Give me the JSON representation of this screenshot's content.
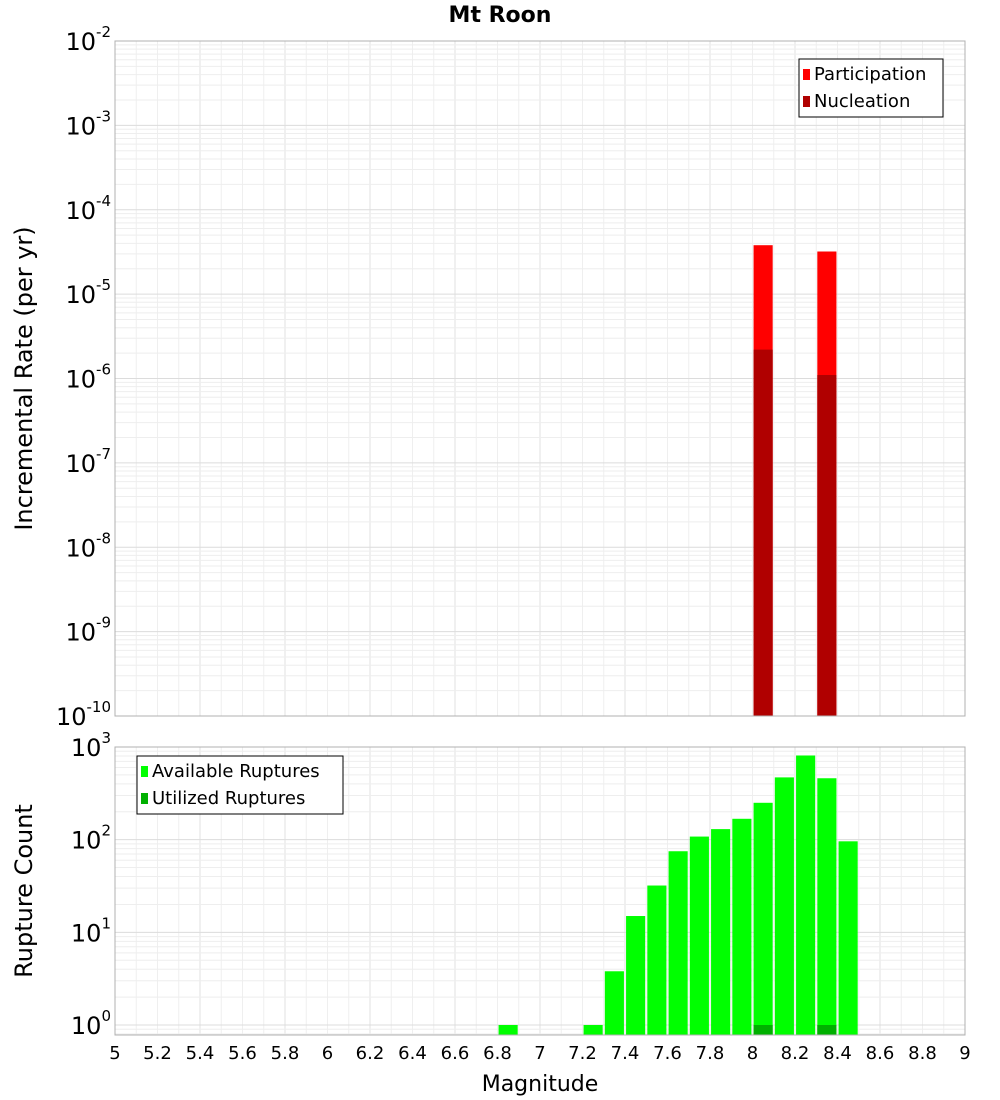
{
  "chart_data": [
    {
      "type": "bar",
      "title": "Mt Roon",
      "xlabel": "",
      "ylabel": "Incremental Rate (per yr)",
      "yscale": "log",
      "ylim": [
        1e-10,
        0.01
      ],
      "y_ticks": [
        {
          "base": "10",
          "exp": "-10"
        },
        {
          "base": "10",
          "exp": "-9"
        },
        {
          "base": "10",
          "exp": "-8"
        },
        {
          "base": "10",
          "exp": "-7"
        },
        {
          "base": "10",
          "exp": "-6"
        },
        {
          "base": "10",
          "exp": "-5"
        },
        {
          "base": "10",
          "exp": "-4"
        },
        {
          "base": "10",
          "exp": "-3"
        },
        {
          "base": "10",
          "exp": "-2"
        }
      ],
      "xlim": [
        5,
        9
      ],
      "bar_width": 0.09,
      "legend_position": "top-right",
      "series": [
        {
          "name": "Participation",
          "color": "#ff0000",
          "points": [
            {
              "x": 8.05,
              "y": 3.8e-05
            },
            {
              "x": 8.35,
              "y": 3.2e-05
            }
          ]
        },
        {
          "name": "Nucleation",
          "color": "#b00000",
          "points": [
            {
              "x": 8.05,
              "y": 2.2e-06
            },
            {
              "x": 8.35,
              "y": 1.1e-06
            }
          ]
        }
      ]
    },
    {
      "type": "bar",
      "xlabel": "Magnitude",
      "ylabel": "Rupture Count",
      "yscale": "log",
      "ylim": [
        0.78,
        1000
      ],
      "y_ticks": [
        {
          "value": 1,
          "base": "10",
          "exp": "0"
        },
        {
          "value": 10,
          "base": "10",
          "exp": "1"
        },
        {
          "value": 100,
          "base": "10",
          "exp": "2"
        },
        {
          "value": 1000,
          "base": "10",
          "exp": "3"
        }
      ],
      "xlim": [
        5,
        9
      ],
      "bar_width": 0.09,
      "x_ticks": [
        "5",
        "5.2",
        "5.4",
        "5.6",
        "5.8",
        "6",
        "6.2",
        "6.4",
        "6.6",
        "6.8",
        "7",
        "7.2",
        "7.4",
        "7.6",
        "7.8",
        "8",
        "8.2",
        "8.4",
        "8.6",
        "8.8",
        "9"
      ],
      "legend_position": "top-left",
      "series": [
        {
          "name": "Available Ruptures",
          "color": "#00ff00",
          "points": [
            {
              "x": 6.85,
              "y": 1
            },
            {
              "x": 7.25,
              "y": 1
            },
            {
              "x": 7.35,
              "y": 3.8
            },
            {
              "x": 7.45,
              "y": 15
            },
            {
              "x": 7.55,
              "y": 32
            },
            {
              "x": 7.65,
              "y": 75
            },
            {
              "x": 7.75,
              "y": 108
            },
            {
              "x": 7.85,
              "y": 130
            },
            {
              "x": 7.95,
              "y": 168
            },
            {
              "x": 8.05,
              "y": 250
            },
            {
              "x": 8.15,
              "y": 470
            },
            {
              "x": 8.25,
              "y": 810
            },
            {
              "x": 8.35,
              "y": 460
            },
            {
              "x": 8.45,
              "y": 96
            }
          ]
        },
        {
          "name": "Utilized Ruptures",
          "color": "#00b000",
          "points": [
            {
              "x": 8.05,
              "y": 1
            },
            {
              "x": 8.35,
              "y": 1
            }
          ]
        }
      ]
    }
  ]
}
